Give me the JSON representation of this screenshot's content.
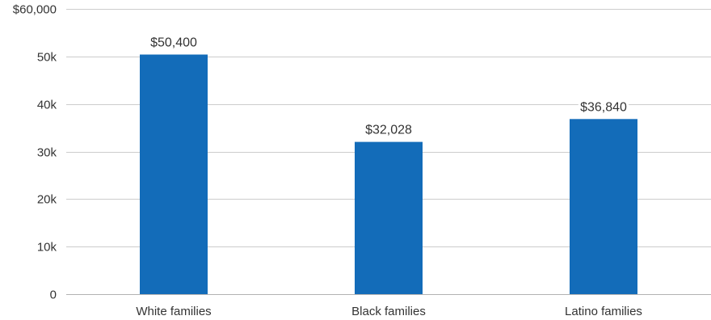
{
  "chart_data": {
    "type": "bar",
    "categories": [
      "White families",
      "Black families",
      "Latino families"
    ],
    "values": [
      50400,
      32028,
      36840
    ],
    "data_labels": [
      "$50,400",
      "$32,028",
      "$36,840"
    ],
    "ylim": [
      0,
      60000
    ],
    "y_ticks": [
      0,
      10000,
      20000,
      30000,
      40000,
      50000,
      60000
    ],
    "y_tick_labels": [
      "0",
      "10k",
      "20k",
      "30k",
      "40k",
      "50k",
      "$60,000"
    ],
    "title": "",
    "xlabel": "",
    "ylabel": "",
    "grid": true,
    "legend": "none",
    "bar_color": "#136cb9"
  }
}
